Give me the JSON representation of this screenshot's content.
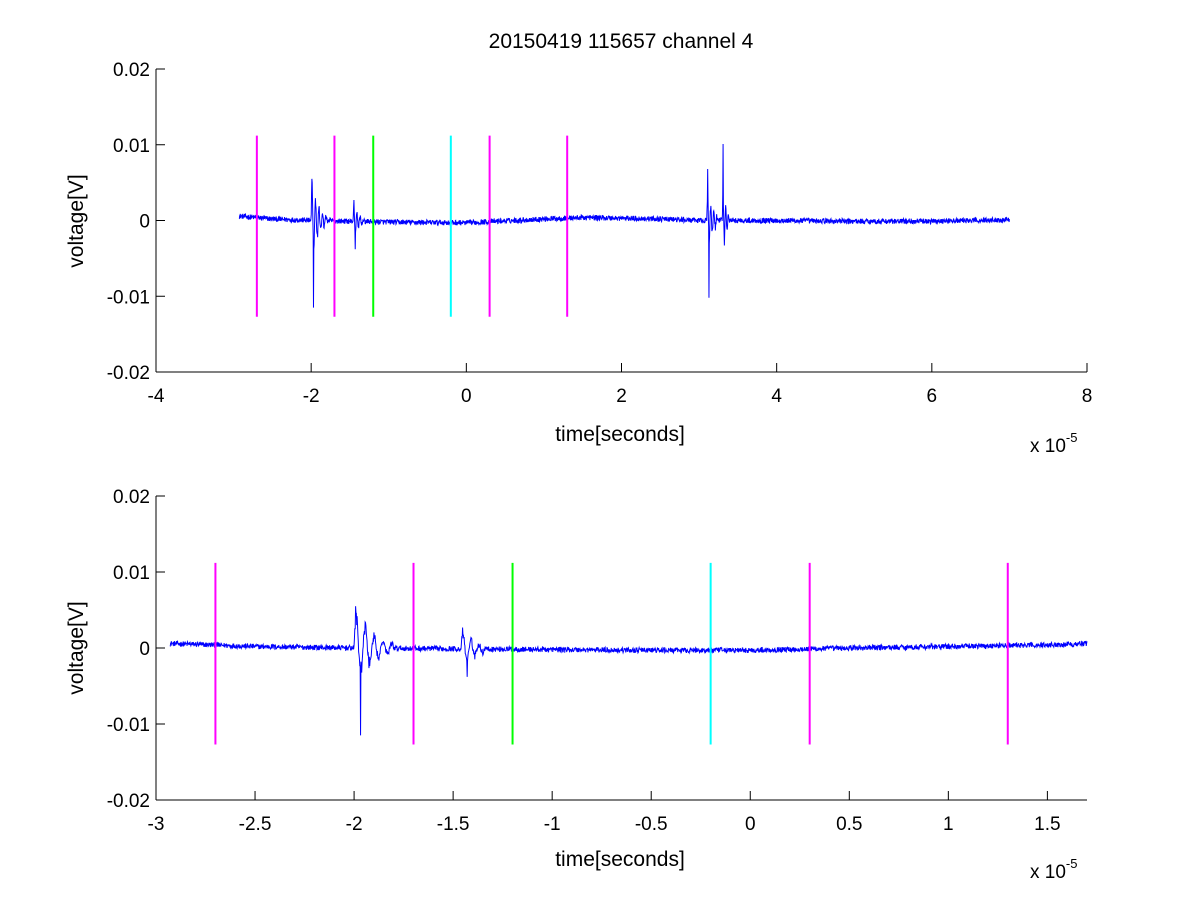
{
  "figure": {
    "title": "20150419 115657 channel 4"
  },
  "chart_data": [
    {
      "type": "line",
      "id": "top",
      "title": "20150419 115657 channel 4",
      "xlabel": "time[seconds]",
      "ylabel": "voltage[V]",
      "x_multiplier": "x 10",
      "x_exponent": "-5",
      "xlim": [
        -4,
        8
      ],
      "ylim": [
        -0.02,
        0.02
      ],
      "xticks": [
        -4,
        -2,
        0,
        2,
        4,
        6,
        8
      ],
      "xtick_labels": [
        "-4",
        "-2",
        "0",
        "2",
        "4",
        "6",
        "8"
      ],
      "yticks": [
        -0.02,
        -0.01,
        0,
        0.01,
        0.02
      ],
      "ytick_labels": [
        "-0.02",
        "-0.01",
        "0",
        "0.01",
        "0.02"
      ],
      "grid": false,
      "markers": [
        {
          "x": -2.7,
          "color": "#ff00ff",
          "ymin": -0.0127,
          "ymax": 0.0112
        },
        {
          "x": -1.7,
          "color": "#ff00ff",
          "ymin": -0.0127,
          "ymax": 0.0112
        },
        {
          "x": -1.2,
          "color": "#00ff00",
          "ymin": -0.0127,
          "ymax": 0.0112
        },
        {
          "x": -0.2,
          "color": "#00ffff",
          "ymin": -0.0127,
          "ymax": 0.0112
        },
        {
          "x": 0.3,
          "color": "#ff00ff",
          "ymin": -0.0127,
          "ymax": 0.0112
        },
        {
          "x": 1.3,
          "color": "#ff00ff",
          "ymin": -0.0127,
          "ymax": 0.0112
        }
      ],
      "series": [
        {
          "color": "#0000ff",
          "x_range": [
            -2.93,
            7.0
          ],
          "baseline": [
            [
              -2.93,
              0.0006
            ],
            [
              -2.5,
              0.0002
            ],
            [
              -2.0,
              0.0
            ],
            [
              -1.0,
              -0.0002
            ],
            [
              0.0,
              -0.0003
            ],
            [
              1.0,
              0.0002
            ],
            [
              1.5,
              0.0004
            ],
            [
              2.5,
              0.0002
            ],
            [
              3.0,
              0.0
            ],
            [
              4.0,
              0.0
            ],
            [
              5.0,
              -0.0001
            ],
            [
              6.0,
              -0.0001
            ],
            [
              7.0,
              0.0001
            ]
          ],
          "bursts": [
            {
              "t0": -2.0,
              "duration": 0.2,
              "amplitude": 0.0048,
              "period": 0.045,
              "decay": 0.09,
              "peak_max": 0.0055,
              "peak_min": -0.0115
            },
            {
              "t0": -1.46,
              "duration": 0.13,
              "amplitude": 0.0022,
              "period": 0.04,
              "decay": 0.07,
              "peak_max": 0.0027,
              "peak_min": -0.0038
            },
            {
              "t0": 3.1,
              "duration": 0.13,
              "amplitude": 0.0045,
              "period": 0.04,
              "decay": 0.07,
              "peak_max": 0.0068,
              "peak_min": -0.0102
            },
            {
              "t0": 3.3,
              "duration": 0.08,
              "amplitude": 0.005,
              "period": 0.035,
              "decay": 0.04,
              "peak_max": 0.0101,
              "peak_min": -0.0033
            }
          ],
          "noise": 0.00035
        }
      ]
    },
    {
      "type": "line",
      "id": "bottom",
      "xlabel": "time[seconds]",
      "ylabel": "voltage[V]",
      "x_multiplier": "x 10",
      "x_exponent": "-5",
      "xlim": [
        -3.0,
        1.7
      ],
      "ylim": [
        -0.02,
        0.02
      ],
      "xticks": [
        -3,
        -2.5,
        -2,
        -1.5,
        -1,
        -0.5,
        0,
        0.5,
        1,
        1.5
      ],
      "xtick_labels": [
        "-3",
        "-2.5",
        "-2",
        "-1.5",
        "-1",
        "-0.5",
        "0",
        "0.5",
        "1",
        "1.5"
      ],
      "yticks": [
        -0.02,
        -0.01,
        0,
        0.01,
        0.02
      ],
      "ytick_labels": [
        "-0.02",
        "-0.01",
        "0",
        "0.01",
        "0.02"
      ],
      "grid": false,
      "markers": [
        {
          "x": -2.7,
          "color": "#ff00ff",
          "ymin": -0.0127,
          "ymax": 0.0112
        },
        {
          "x": -1.7,
          "color": "#ff00ff",
          "ymin": -0.0127,
          "ymax": 0.0112
        },
        {
          "x": -1.2,
          "color": "#00ff00",
          "ymin": -0.0127,
          "ymax": 0.0112
        },
        {
          "x": -0.2,
          "color": "#00ffff",
          "ymin": -0.0127,
          "ymax": 0.0112
        },
        {
          "x": 0.3,
          "color": "#ff00ff",
          "ymin": -0.0127,
          "ymax": 0.0112
        },
        {
          "x": 1.3,
          "color": "#ff00ff",
          "ymin": -0.0127,
          "ymax": 0.0112
        }
      ],
      "series": [
        {
          "color": "#0000ff",
          "x_range": [
            -2.93,
            1.7
          ],
          "baseline": [
            [
              -2.93,
              0.0006
            ],
            [
              -2.5,
              0.0002
            ],
            [
              -2.0,
              0.0
            ],
            [
              -1.5,
              -0.0001
            ],
            [
              -1.0,
              -0.0002
            ],
            [
              -0.5,
              -0.0003
            ],
            [
              0.0,
              -0.0003
            ],
            [
              0.5,
              0.0
            ],
            [
              1.0,
              0.0002
            ],
            [
              1.5,
              0.0004
            ],
            [
              1.7,
              0.0006
            ]
          ],
          "bursts": [
            {
              "t0": -2.0,
              "duration": 0.2,
              "amplitude": 0.0048,
              "period": 0.045,
              "decay": 0.09,
              "peak_max": 0.0055,
              "peak_min": -0.0115
            },
            {
              "t0": -1.46,
              "duration": 0.13,
              "amplitude": 0.0022,
              "period": 0.04,
              "decay": 0.07,
              "peak_max": 0.0027,
              "peak_min": -0.0038
            }
          ],
          "noise": 0.00035
        }
      ]
    }
  ]
}
